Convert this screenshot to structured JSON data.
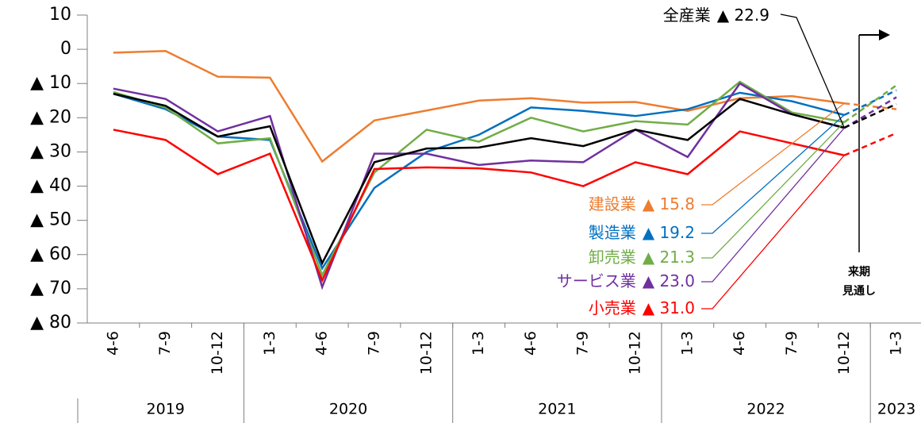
{
  "chart_data": {
    "type": "line",
    "categories": [
      "4-6",
      "7-9",
      "10-12",
      "1-3",
      "4-6",
      "7-9",
      "10-12",
      "1-3",
      "4-6",
      "7-9",
      "10-12",
      "1-3",
      "4-6",
      "7-9",
      "10-12",
      "1-3"
    ],
    "years": [
      "2019",
      "2019",
      "2019",
      "2020",
      "2020",
      "2020",
      "2020",
      "2021",
      "2021",
      "2021",
      "2021",
      "2022",
      "2022",
      "2022",
      "2022",
      "2023"
    ],
    "forecast_index": 15,
    "ylim": [
      -80,
      10
    ],
    "yticks": [
      10,
      0,
      {
        "value": -10,
        "label": "▲ 10"
      },
      {
        "value": -20,
        "label": "▲ 20"
      },
      {
        "value": -30,
        "label": "▲ 30"
      },
      {
        "value": -40,
        "label": "▲ 40"
      },
      {
        "value": -50,
        "label": "▲ 50"
      },
      {
        "value": -60,
        "label": "▲ 60"
      },
      {
        "value": -70,
        "label": "▲ 70"
      },
      {
        "value": -80,
        "label": "▲ 80"
      }
    ],
    "grid": false,
    "series": [
      {
        "name": "建設業",
        "color": "#ED7D31",
        "values": [
          -1,
          -0.5,
          -8,
          -8.3,
          -32.8,
          -20.8,
          -17.9,
          -15,
          -14.3,
          -15.6,
          -15.4,
          -18,
          -14.3,
          -13.7,
          -15.8,
          -17.5
        ],
        "value_labels": [
          null,
          null,
          null,
          null,
          null,
          null,
          null,
          null,
          null,
          null,
          null,
          null,
          null,
          null,
          "▲ 15.8",
          null
        ]
      },
      {
        "name": "製造業",
        "color": "#0070C0",
        "values": [
          -13,
          -17.5,
          -25.5,
          -26.5,
          -64,
          -40.5,
          -30,
          -25,
          -17,
          -18,
          -19.5,
          -17.5,
          -12.7,
          -15.2,
          -19.2,
          -12
        ],
        "value_labels": [
          null,
          null,
          null,
          null,
          null,
          null,
          null,
          null,
          null,
          null,
          null,
          null,
          null,
          null,
          "▲ 19.2",
          null
        ]
      },
      {
        "name": "卸売業",
        "color": "#70AD47",
        "values": [
          -12.5,
          -17,
          -27.5,
          -26,
          -66,
          -36,
          -23.5,
          -27,
          -20,
          -24,
          -21,
          -22,
          -9.5,
          -18.5,
          -21.3,
          -10.5
        ],
        "value_labels": [
          null,
          null,
          null,
          null,
          null,
          null,
          null,
          null,
          null,
          null,
          null,
          null,
          null,
          null,
          "▲ 21.3",
          null
        ]
      },
      {
        "name": "サービス業",
        "color": "#7030A0",
        "values": [
          -11.5,
          -14.5,
          -24,
          -19.5,
          -69.5,
          -30.5,
          -30.5,
          -33.8,
          -32.5,
          -33,
          -23.5,
          -31.5,
          -10,
          -19,
          -23.0,
          -14
        ],
        "value_labels": [
          null,
          null,
          null,
          null,
          null,
          null,
          null,
          null,
          null,
          null,
          null,
          null,
          null,
          null,
          "▲ 23.0",
          null
        ]
      },
      {
        "name": "小売業",
        "color": "#FF0000",
        "values": [
          -23.5,
          -26.5,
          -36.5,
          -30.5,
          -67.5,
          -35,
          -34.5,
          -34.8,
          -36,
          -40,
          -33,
          -36.5,
          -24,
          -27.5,
          -31.0,
          -24.5
        ],
        "value_labels": [
          null,
          null,
          null,
          null,
          null,
          null,
          null,
          null,
          null,
          null,
          null,
          null,
          null,
          null,
          "▲ 31.0",
          null
        ]
      },
      {
        "name": "全産業",
        "color": "#000000",
        "values": [
          -13,
          -16.5,
          -25.5,
          -22.5,
          -62.5,
          -33,
          -29,
          -28.7,
          -26,
          -28.3,
          -23.5,
          -26.5,
          -14.5,
          -19,
          -22.9,
          -16
        ],
        "value_labels": [
          null,
          null,
          null,
          null,
          null,
          null,
          null,
          null,
          null,
          null,
          null,
          null,
          null,
          null,
          "▲ 22.9",
          null
        ]
      }
    ],
    "annotations": [
      "来期",
      "見通し"
    ]
  }
}
